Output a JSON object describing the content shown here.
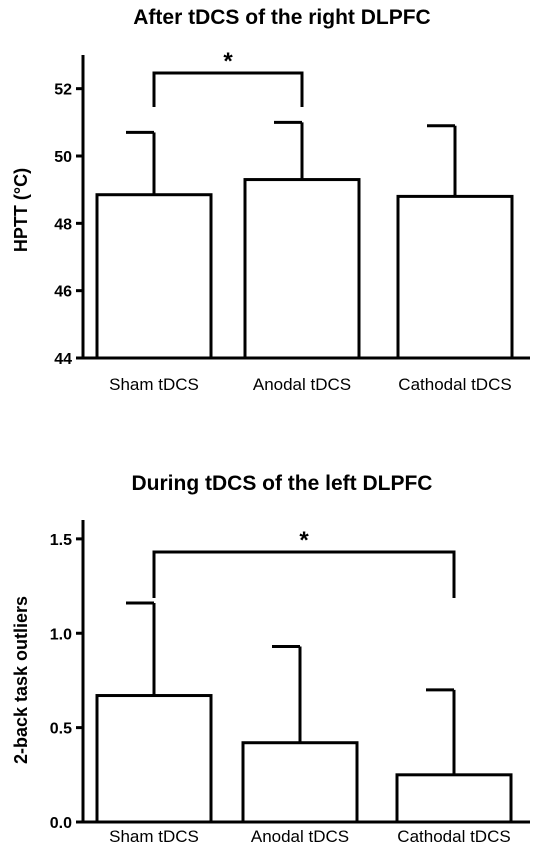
{
  "chart_data": [
    {
      "type": "bar",
      "title": "After tDCS of the right DLPFC",
      "ylabel": "HPTT (°C)",
      "xlabel": "",
      "categories": [
        "Sham tDCS",
        "Anodal tDCS",
        "Cathodal tDCS"
      ],
      "values": [
        48.85,
        49.3,
        48.8
      ],
      "error_upper": [
        50.7,
        51.0,
        50.9
      ],
      "ylim": [
        44,
        53
      ],
      "yticks": [
        44,
        46,
        48,
        50,
        52
      ],
      "ytick_labels": [
        "44",
        "46",
        "48",
        "50",
        "52"
      ],
      "significance": {
        "from": 0,
        "to": 1,
        "label": "*"
      },
      "grid": false,
      "legend": "none"
    },
    {
      "type": "bar",
      "title": "During tDCS of the left DLPFC",
      "ylabel": "2-back task outliers",
      "xlabel": "",
      "categories": [
        "Sham tDCS",
        "Anodal tDCS",
        "Cathodal tDCS"
      ],
      "values": [
        0.67,
        0.42,
        0.25
      ],
      "error_upper": [
        1.16,
        0.93,
        0.7
      ],
      "ylim": [
        0,
        1.6
      ],
      "yticks": [
        0.0,
        0.5,
        1.0,
        1.5
      ],
      "ytick_labels": [
        "0.0",
        "0.5",
        "1.0",
        "1.5"
      ],
      "significance": {
        "from": 0,
        "to": 2,
        "label": "*"
      },
      "grid": false,
      "legend": "none"
    }
  ]
}
